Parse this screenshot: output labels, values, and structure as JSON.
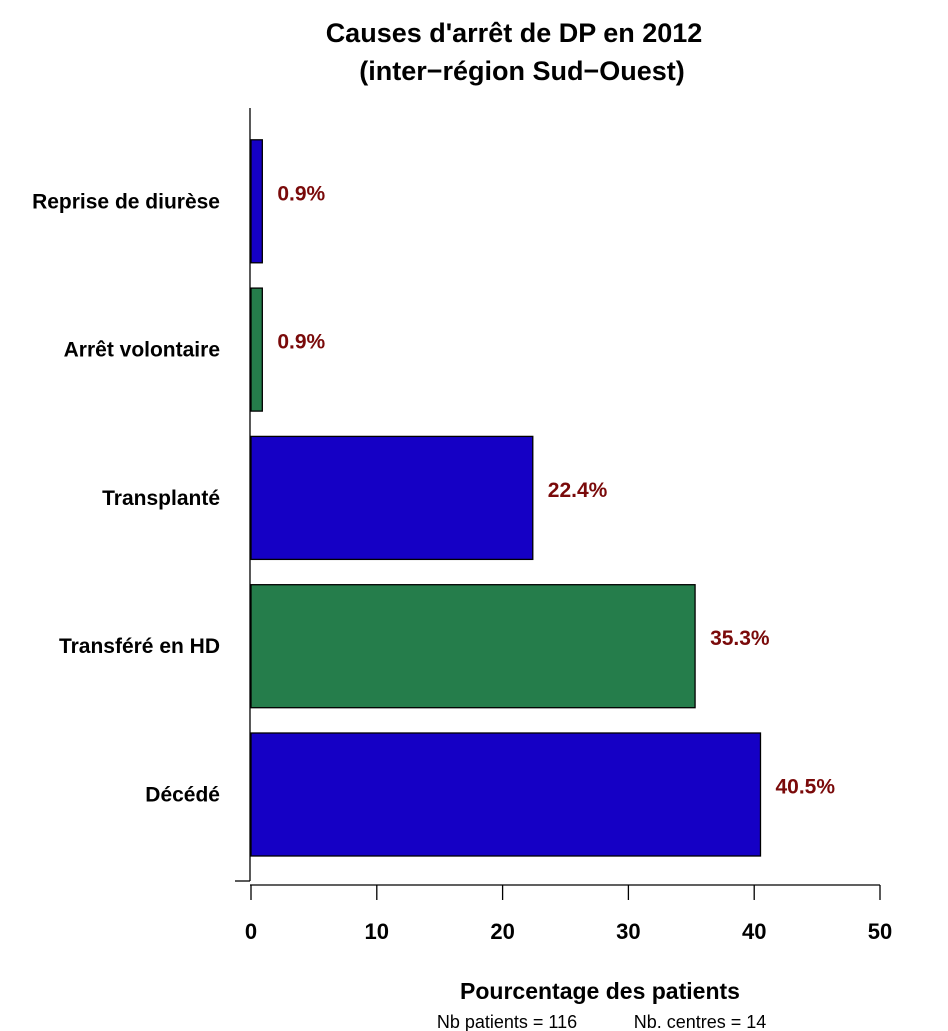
{
  "chart_data": {
    "type": "bar",
    "orientation": "horizontal",
    "title": "Causes d'arrêt de DP en 2012",
    "subtitle": "(inter−région Sud−Ouest)",
    "xlabel": "Pourcentage des patients",
    "ylabel": "",
    "categories": [
      "Décédé",
      "Transféré en HD",
      "Transplanté",
      "Arrêt volontaire",
      "Reprise de diurèse"
    ],
    "values": [
      40.5,
      35.3,
      22.4,
      0.9,
      0.9
    ],
    "data_labels": [
      "40.5%",
      "35.3%",
      "22.4%",
      "0.9%",
      "0.9%"
    ],
    "bar_colors": [
      "#1500c5",
      "#257d4b",
      "#1500c5",
      "#257d4b",
      "#1500c5"
    ],
    "label_color": "#7a0a0a",
    "xlim": [
      0,
      50
    ],
    "xticks": [
      "0",
      "10",
      "20",
      "30",
      "40",
      "50"
    ],
    "grid": false,
    "legend": "none"
  },
  "footer": {
    "patients": "Nb patients =  116",
    "centres": "Nb. centres =  14"
  }
}
